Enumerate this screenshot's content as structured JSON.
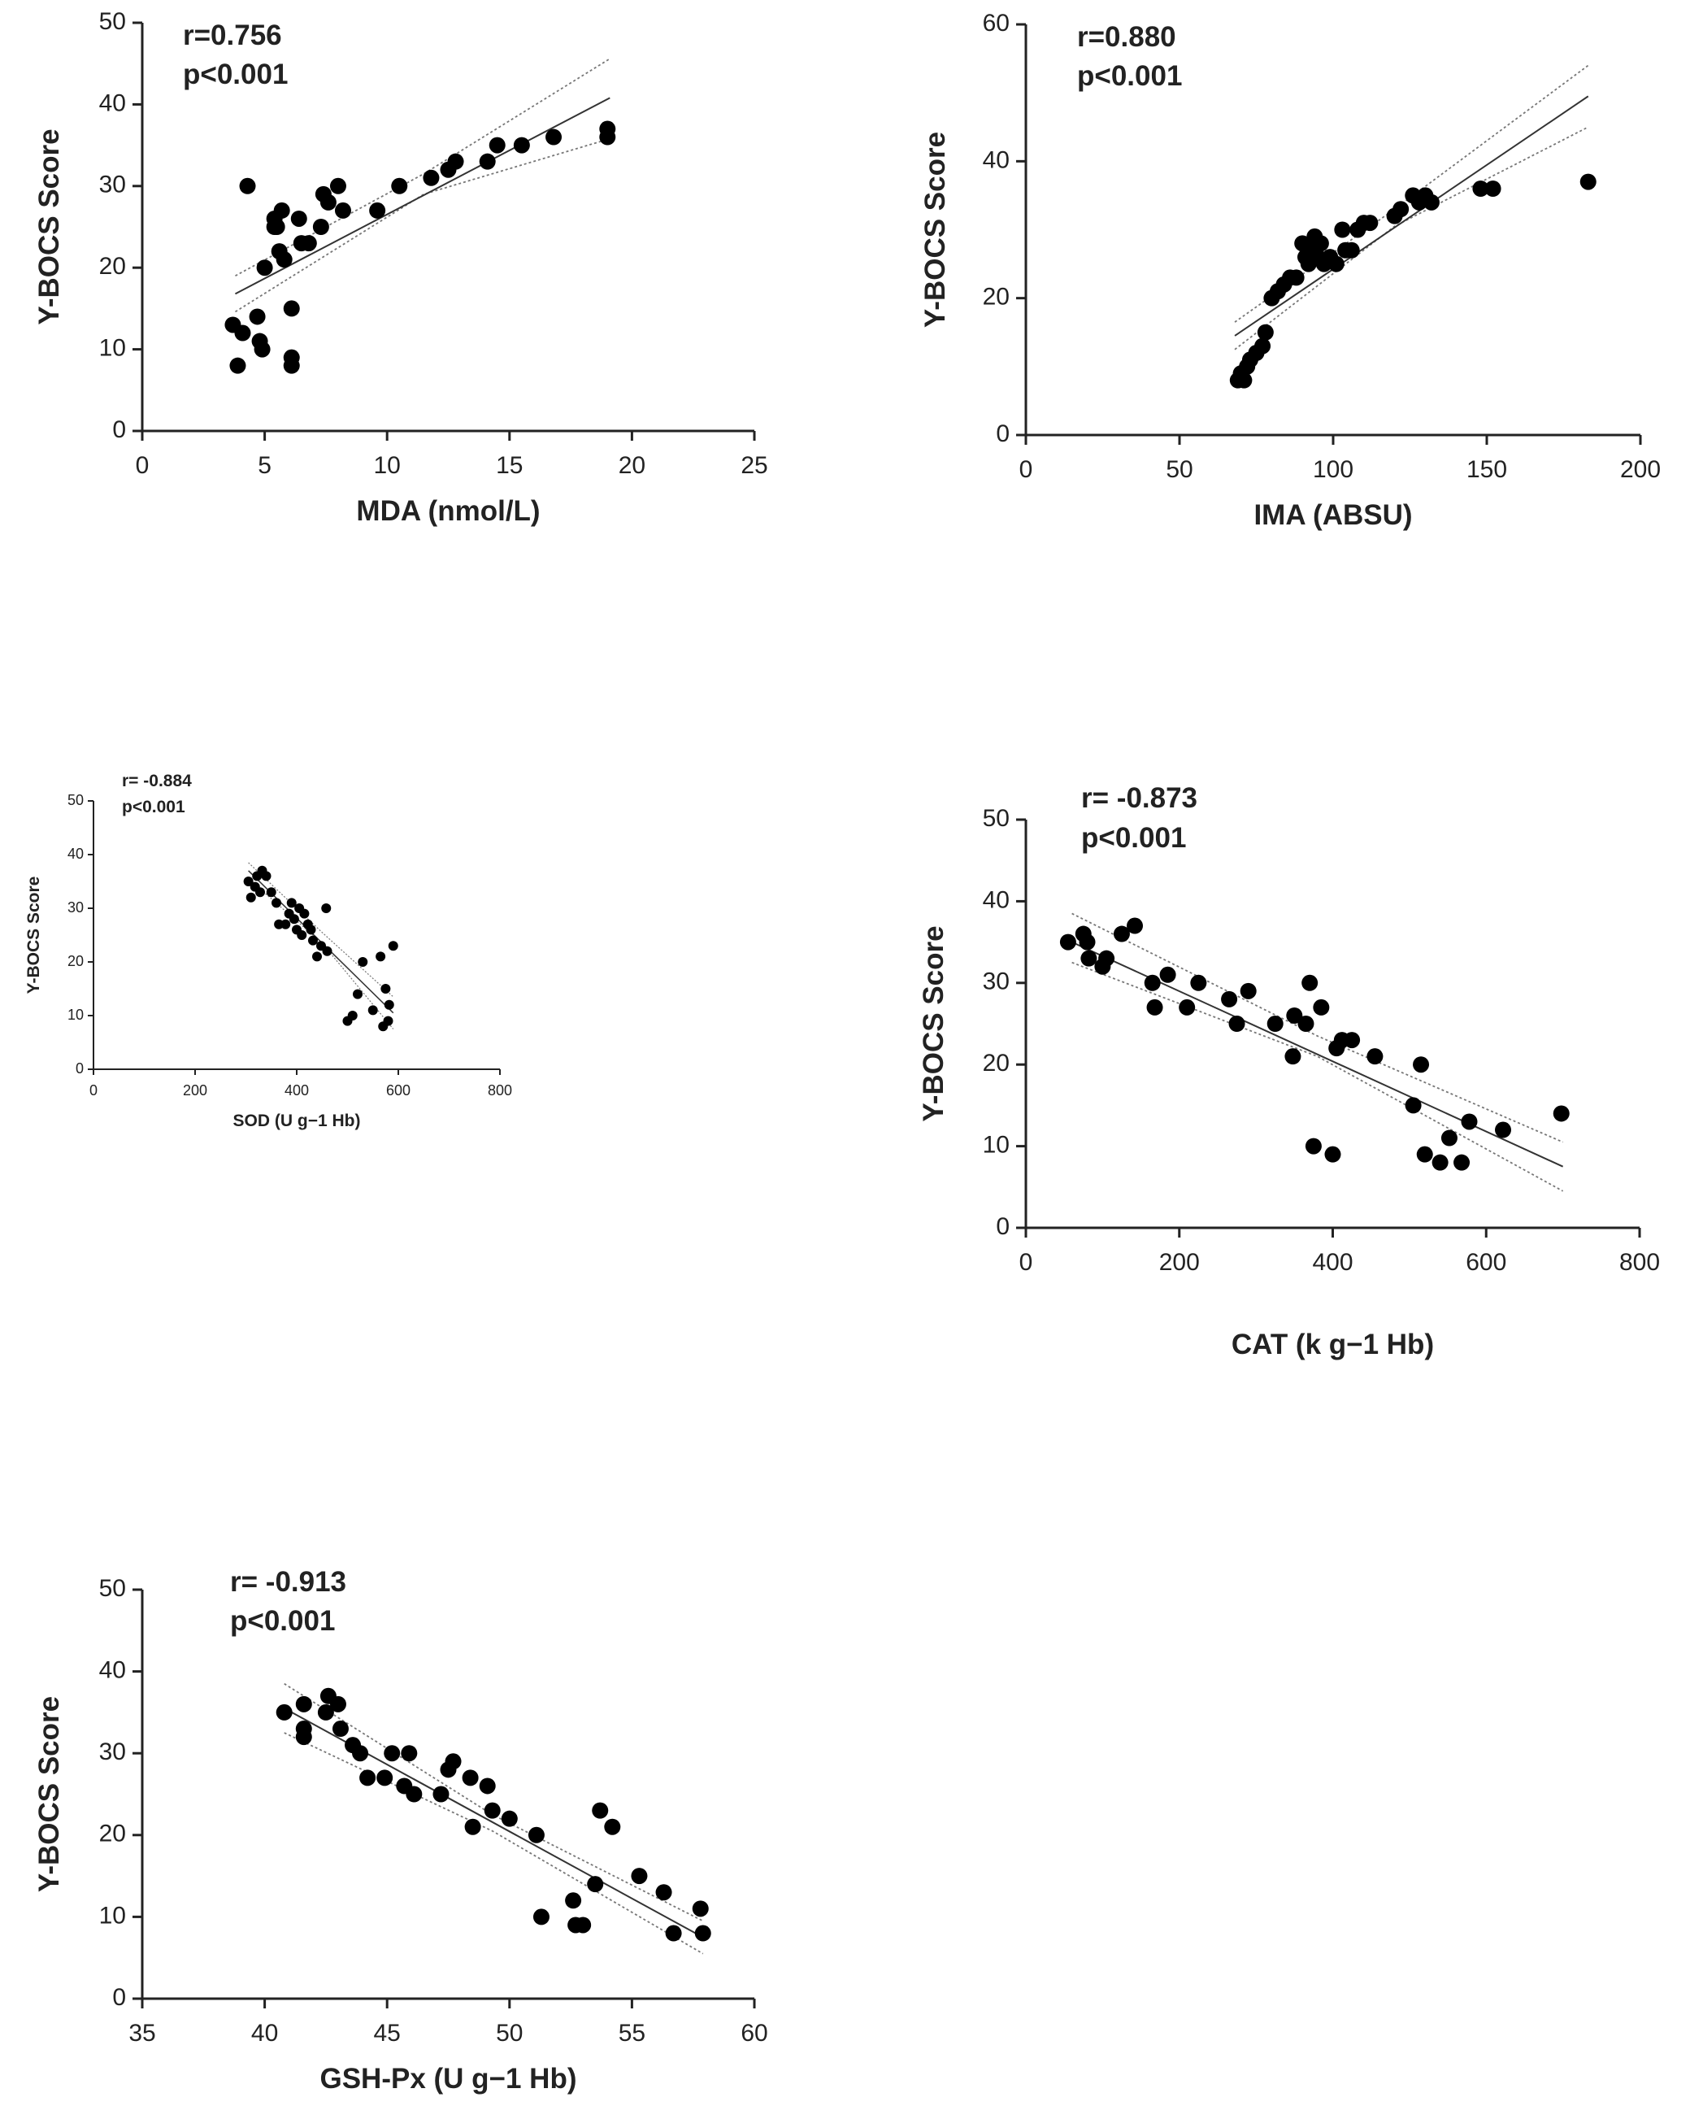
{
  "chart_data": [
    {
      "id": "mda",
      "type": "scatter",
      "title": "",
      "xlabel": "MDA (nmol/L)",
      "ylabel": "Y-BOCS Score",
      "annotation": [
        "r=0.756",
        "p<0.001"
      ],
      "xlim": [
        0,
        25
      ],
      "ylim": [
        0,
        50
      ],
      "xticks": [
        0,
        5,
        10,
        15,
        20,
        25
      ],
      "yticks": [
        0,
        10,
        20,
        30,
        40,
        50
      ],
      "fit": {
        "x": [
          3.8,
          19.1
        ],
        "y": [
          16.8,
          40.8
        ]
      },
      "ci_upper": {
        "x": [
          3.8,
          11.5,
          19.1
        ],
        "y": [
          19.0,
          31.5,
          45.6
        ]
      },
      "ci_lower": {
        "x": [
          3.8,
          11.5,
          19.1
        ],
        "y": [
          14.6,
          29.0,
          35.8
        ]
      },
      "points": [
        [
          4.3,
          30
        ],
        [
          3.7,
          13
        ],
        [
          4.1,
          12
        ],
        [
          3.9,
          8
        ],
        [
          4.7,
          14
        ],
        [
          4.8,
          11
        ],
        [
          4.9,
          10
        ],
        [
          5.0,
          20
        ],
        [
          5.4,
          26
        ],
        [
          5.4,
          25
        ],
        [
          5.7,
          27
        ],
        [
          5.6,
          22
        ],
        [
          5.8,
          21
        ],
        [
          5.5,
          25
        ],
        [
          6.1,
          15
        ],
        [
          6.1,
          9
        ],
        [
          6.1,
          8
        ],
        [
          6.4,
          26
        ],
        [
          6.5,
          23
        ],
        [
          6.8,
          23
        ],
        [
          7.3,
          25
        ],
        [
          7.4,
          29
        ],
        [
          7.6,
          28
        ],
        [
          8.0,
          30
        ],
        [
          8.2,
          27
        ],
        [
          9.6,
          27
        ],
        [
          10.5,
          30
        ],
        [
          11.8,
          31
        ],
        [
          12.5,
          32
        ],
        [
          12.8,
          33
        ],
        [
          14.1,
          33
        ],
        [
          14.5,
          35
        ],
        [
          15.5,
          35
        ],
        [
          16.8,
          36
        ],
        [
          19.0,
          37
        ],
        [
          19.0,
          36
        ]
      ]
    },
    {
      "id": "ima",
      "type": "scatter",
      "title": "",
      "xlabel": "IMA (ABSU)",
      "ylabel": "Y-BOCS Score",
      "annotation": [
        "r=0.880",
        "p<0.001"
      ],
      "xlim": [
        0,
        200
      ],
      "ylim": [
        0,
        60
      ],
      "xticks": [
        0,
        50,
        100,
        150,
        200
      ],
      "yticks": [
        0,
        20,
        40,
        60
      ],
      "fit": {
        "x": [
          68,
          183
        ],
        "y": [
          14.5,
          49.5
        ]
      },
      "ci_upper": {
        "x": [
          68,
          120,
          183
        ],
        "y": [
          16.5,
          33.0,
          54.0
        ]
      },
      "ci_lower": {
        "x": [
          68,
          120,
          183
        ],
        "y": [
          12.5,
          30.5,
          45.0
        ]
      },
      "points": [
        [
          69,
          8
        ],
        [
          70,
          9
        ],
        [
          71,
          8
        ],
        [
          72,
          10
        ],
        [
          73,
          11
        ],
        [
          75,
          12
        ],
        [
          77,
          13
        ],
        [
          78,
          15
        ],
        [
          80,
          20
        ],
        [
          82,
          21
        ],
        [
          84,
          22
        ],
        [
          86,
          23
        ],
        [
          88,
          23
        ],
        [
          90,
          28
        ],
        [
          91,
          26
        ],
        [
          92,
          25
        ],
        [
          93,
          27
        ],
        [
          94,
          29
        ],
        [
          95,
          26
        ],
        [
          96,
          28
        ],
        [
          97,
          25
        ],
        [
          99,
          26
        ],
        [
          101,
          25
        ],
        [
          103,
          30
        ],
        [
          104,
          27
        ],
        [
          106,
          27
        ],
        [
          108,
          30
        ],
        [
          110,
          31
        ],
        [
          112,
          31
        ],
        [
          120,
          32
        ],
        [
          122,
          33
        ],
        [
          126,
          35
        ],
        [
          128,
          34
        ],
        [
          130,
          35
        ],
        [
          132,
          34
        ],
        [
          148,
          36
        ],
        [
          152,
          36
        ],
        [
          183,
          37
        ]
      ]
    },
    {
      "id": "sod",
      "type": "scatter",
      "title": "",
      "xlabel": "SOD (U g−1 Hb)",
      "ylabel": "Y-BOCS Score",
      "annotation": [
        "r= -0.884",
        "p<0.001"
      ],
      "xlim": [
        0,
        800
      ],
      "ylim": [
        0,
        50
      ],
      "xticks": [
        0,
        200,
        400,
        600,
        800
      ],
      "yticks": [
        0,
        10,
        20,
        30,
        40,
        50
      ],
      "fit": {
        "x": [
          305,
          590
        ],
        "y": [
          37.0,
          10.5
        ]
      },
      "ci_upper": {
        "x": [
          305,
          450,
          590
        ],
        "y": [
          38.5,
          25.5,
          13.5
        ]
      },
      "ci_lower": {
        "x": [
          305,
          450,
          590
        ],
        "y": [
          35.5,
          23.5,
          7.5
        ]
      },
      "points": [
        [
          305,
          35
        ],
        [
          310,
          32
        ],
        [
          318,
          34
        ],
        [
          322,
          36
        ],
        [
          328,
          33
        ],
        [
          332,
          37
        ],
        [
          340,
          36
        ],
        [
          350,
          33
        ],
        [
          360,
          31
        ],
        [
          365,
          27
        ],
        [
          378,
          27
        ],
        [
          385,
          29
        ],
        [
          390,
          31
        ],
        [
          395,
          28
        ],
        [
          400,
          26
        ],
        [
          405,
          30
        ],
        [
          410,
          25
        ],
        [
          415,
          29
        ],
        [
          422,
          27
        ],
        [
          428,
          26
        ],
        [
          432,
          24
        ],
        [
          440,
          21
        ],
        [
          448,
          23
        ],
        [
          458,
          30
        ],
        [
          460,
          22
        ],
        [
          500,
          9
        ],
        [
          510,
          10
        ],
        [
          520,
          14
        ],
        [
          530,
          20
        ],
        [
          550,
          11
        ],
        [
          565,
          21
        ],
        [
          570,
          8
        ],
        [
          575,
          15
        ],
        [
          580,
          9
        ],
        [
          582,
          12
        ],
        [
          590,
          23
        ]
      ]
    },
    {
      "id": "cat",
      "type": "scatter",
      "title": "",
      "xlabel": "CAT (k g−1 Hb)",
      "ylabel": "Y-BOCS Score",
      "annotation": [
        "r= -0.873",
        "p<0.001"
      ],
      "xlim": [
        0,
        800
      ],
      "ylim": [
        0,
        50
      ],
      "xticks": [
        0,
        200,
        400,
        600,
        800
      ],
      "yticks": [
        0,
        10,
        20,
        30,
        40,
        50
      ],
      "fit": {
        "x": [
          60,
          700
        ],
        "y": [
          35.0,
          7.5
        ]
      },
      "ci_upper": {
        "x": [
          60,
          380,
          700
        ],
        "y": [
          38.5,
          23.5,
          10.5
        ]
      },
      "ci_lower": {
        "x": [
          60,
          380,
          700
        ],
        "y": [
          32.5,
          21.0,
          4.5
        ]
      },
      "points": [
        [
          55,
          35
        ],
        [
          75,
          36
        ],
        [
          80,
          35
        ],
        [
          82,
          33
        ],
        [
          100,
          32
        ],
        [
          105,
          33
        ],
        [
          125,
          36
        ],
        [
          142,
          37
        ],
        [
          165,
          30
        ],
        [
          168,
          27
        ],
        [
          185,
          31
        ],
        [
          210,
          27
        ],
        [
          225,
          30
        ],
        [
          265,
          28
        ],
        [
          275,
          25
        ],
        [
          290,
          29
        ],
        [
          325,
          25
        ],
        [
          348,
          21
        ],
        [
          350,
          26
        ],
        [
          365,
          25
        ],
        [
          370,
          30
        ],
        [
          375,
          10
        ],
        [
          385,
          27
        ],
        [
          400,
          9
        ],
        [
          405,
          22
        ],
        [
          412,
          23
        ],
        [
          425,
          23
        ],
        [
          455,
          21
        ],
        [
          505,
          15
        ],
        [
          515,
          20
        ],
        [
          520,
          9
        ],
        [
          540,
          8
        ],
        [
          552,
          11
        ],
        [
          568,
          8
        ],
        [
          578,
          13
        ],
        [
          622,
          12
        ],
        [
          698,
          14
        ]
      ]
    },
    {
      "id": "gsh",
      "type": "scatter",
      "title": "",
      "xlabel": "GSH-Px (U g−1 Hb)",
      "ylabel": "Y-BOCS Score",
      "annotation": [
        "r= -0.913",
        "p<0.001"
      ],
      "xlim": [
        35,
        60
      ],
      "ylim": [
        0,
        50
      ],
      "xticks": [
        35,
        40,
        45,
        50,
        55,
        60
      ],
      "yticks": [
        0,
        10,
        20,
        30,
        40,
        50
      ],
      "fit": {
        "x": [
          40.8,
          57.9
        ],
        "y": [
          35.5,
          7.5
        ]
      },
      "ci_upper": {
        "x": [
          40.8,
          49.3,
          57.9
        ],
        "y": [
          38.5,
          22.5,
          9.5
        ]
      },
      "ci_lower": {
        "x": [
          40.8,
          49.3,
          57.9
        ],
        "y": [
          32.5,
          20.5,
          5.5
        ]
      },
      "points": [
        [
          40.8,
          35
        ],
        [
          41.6,
          36
        ],
        [
          41.6,
          33
        ],
        [
          41.6,
          32
        ],
        [
          42.5,
          35
        ],
        [
          42.6,
          37
        ],
        [
          43.0,
          36
        ],
        [
          43.1,
          33
        ],
        [
          43.6,
          31
        ],
        [
          43.9,
          30
        ],
        [
          44.2,
          27
        ],
        [
          44.9,
          27
        ],
        [
          45.2,
          30
        ],
        [
          45.7,
          26
        ],
        [
          45.9,
          30
        ],
        [
          46.1,
          25
        ],
        [
          47.2,
          25
        ],
        [
          47.5,
          28
        ],
        [
          47.7,
          29
        ],
        [
          48.4,
          27
        ],
        [
          48.5,
          21
        ],
        [
          49.1,
          26
        ],
        [
          49.3,
          23
        ],
        [
          50.0,
          22
        ],
        [
          51.1,
          20
        ],
        [
          51.3,
          10
        ],
        [
          52.6,
          12
        ],
        [
          52.7,
          9
        ],
        [
          53.0,
          9
        ],
        [
          53.5,
          14
        ],
        [
          53.7,
          23
        ],
        [
          54.2,
          21
        ],
        [
          55.3,
          15
        ],
        [
          56.3,
          13
        ],
        [
          56.7,
          8
        ],
        [
          57.8,
          11
        ],
        [
          57.9,
          8
        ]
      ]
    }
  ]
}
